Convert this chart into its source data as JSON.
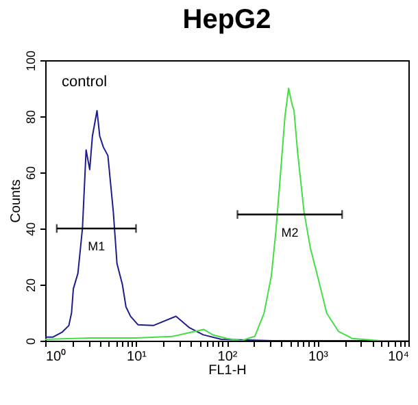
{
  "chart_data": {
    "type": "line",
    "title": "HepG2",
    "xlabel": "FL1-H",
    "ylabel": "Counts",
    "log": "x",
    "grid": false,
    "annotations": [
      "control"
    ],
    "xlim": [
      1,
      10000
    ],
    "ylim": [
      0,
      100
    ],
    "xticks": [
      {
        "value": 1,
        "label": "10⁰"
      },
      {
        "value": 2,
        "label": null
      },
      {
        "value": 3,
        "label": null
      },
      {
        "value": 4,
        "label": null
      },
      {
        "value": 5,
        "label": null
      },
      {
        "value": 6,
        "label": null
      },
      {
        "value": 7,
        "label": null
      },
      {
        "value": 8,
        "label": null
      },
      {
        "value": 9,
        "label": null
      },
      {
        "value": 10,
        "label": "10¹"
      },
      {
        "value": 20,
        "label": null
      },
      {
        "value": 30,
        "label": null
      },
      {
        "value": 40,
        "label": null
      },
      {
        "value": 50,
        "label": null
      },
      {
        "value": 60,
        "label": null
      },
      {
        "value": 70,
        "label": null
      },
      {
        "value": 80,
        "label": null
      },
      {
        "value": 90,
        "label": null
      },
      {
        "value": 100,
        "label": "10²"
      },
      {
        "value": 200,
        "label": null
      },
      {
        "value": 300,
        "label": null
      },
      {
        "value": 400,
        "label": null
      },
      {
        "value": 500,
        "label": null
      },
      {
        "value": 600,
        "label": null
      },
      {
        "value": 700,
        "label": null
      },
      {
        "value": 800,
        "label": null
      },
      {
        "value": 900,
        "label": null
      },
      {
        "value": 1000,
        "label": "10³"
      },
      {
        "value": 2000,
        "label": null
      },
      {
        "value": 3000,
        "label": null
      },
      {
        "value": 4000,
        "label": null
      },
      {
        "value": 5000,
        "label": null
      },
      {
        "value": 6000,
        "label": null
      },
      {
        "value": 7000,
        "label": null
      },
      {
        "value": 8000,
        "label": null
      },
      {
        "value": 9000,
        "label": null
      },
      {
        "value": 10000,
        "label": "10⁴"
      }
    ],
    "yticks": [
      0,
      20,
      40,
      60,
      80,
      100
    ],
    "series": [
      {
        "color": "#1c1c8e",
        "x": [
          1,
          1.22,
          1.53,
          1.82,
          1.95,
          2.04,
          2.29,
          2.57,
          2.82,
          3.09,
          3.31,
          3.72,
          3.98,
          4.37,
          4.9,
          5.62,
          6.17,
          7.08,
          7.76,
          8.71,
          10.5,
          15.5,
          27.5,
          38.9,
          55,
          87,
          316,
          10000
        ],
        "values": [
          1.3,
          1.3,
          3,
          5.4,
          10,
          18.5,
          24,
          40,
          68,
          61,
          73,
          82,
          73,
          69,
          66,
          46,
          27.5,
          20,
          12,
          8.7,
          5.7,
          5.4,
          8.7,
          4.6,
          2.1,
          0.5,
          0,
          0
        ]
      },
      {
        "color": "#44dd44",
        "x": [
          1,
          3.16,
          10,
          25,
          40,
          56,
          71,
          100,
          145,
          204,
          257,
          309,
          347,
          389,
          437,
          479,
          525,
          550,
          603,
          708,
          832,
          1000,
          1259,
          1698,
          2399,
          4898,
          10000
        ],
        "values": [
          0.5,
          1,
          1,
          1.5,
          3,
          4,
          2,
          0.8,
          0,
          1.6,
          9.8,
          23,
          39,
          59,
          80,
          90,
          84,
          82,
          67,
          46,
          33,
          23,
          9.8,
          3.3,
          0.8,
          0,
          0
        ]
      },
      {
        "name": "M1",
        "color": "#000000",
        "x": [
          1.34,
          10
        ],
        "values": [
          40,
          40
        ]
      },
      {
        "name": "M2",
        "color": "#000000",
        "x": [
          131,
          1862
        ],
        "values": [
          45,
          45
        ]
      }
    ]
  }
}
